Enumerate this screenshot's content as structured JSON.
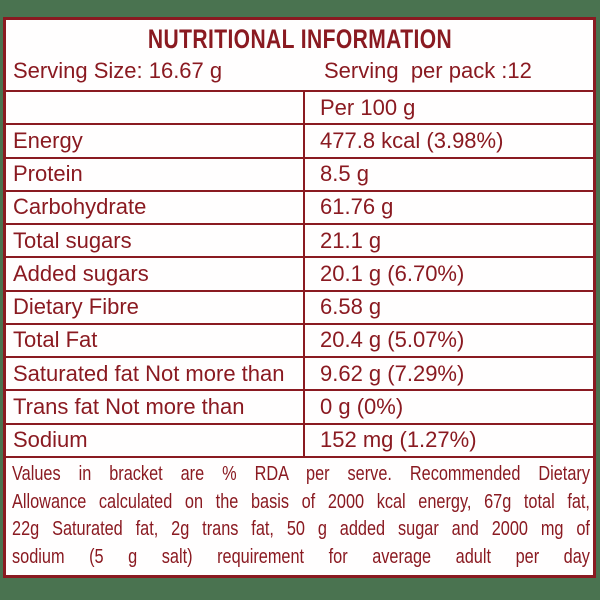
{
  "colors": {
    "package_green": "#4a7350",
    "label_maroon": "#8a1a21",
    "label_background": "#fffefe"
  },
  "header": {
    "title": "NUTRITIONAL INFORMATION",
    "serving_size": "Serving Size: 16.67 g",
    "serving_per_pack": "Serving  per pack :12"
  },
  "table": {
    "rows": [
      {
        "label": "",
        "value": "Per 100 g"
      },
      {
        "label": "Energy",
        "value": "477.8 kcal (3.98%)"
      },
      {
        "label": "Protein",
        "value": "8.5 g"
      },
      {
        "label": "Carbohydrate",
        "value": "61.76 g"
      },
      {
        "label": "Total sugars",
        "value": "21.1 g"
      },
      {
        "label": "Added sugars",
        "value": "20.1 g (6.70%)"
      },
      {
        "label": "Dietary Fibre",
        "value": "6.58 g"
      },
      {
        "label": "Total Fat",
        "value": "20.4 g (5.07%)"
      },
      {
        "label": "Saturated fat Not more than",
        "value": "9.62 g (7.29%)"
      },
      {
        "label": "Trans fat Not more than",
        "value": "0 g (0%)"
      },
      {
        "label": "Sodium",
        "value": "152 mg (1.27%)"
      }
    ]
  },
  "footer": {
    "lines": [
      "Values in bracket are % RDA per serve. Recommended Dietary",
      "Allowance calculated on the basis of 2000 kcal energy, 67g total fat,",
      "22g Saturated fat, 2g trans fat, 50 g added sugar and 2000 mg of",
      "sodium (5 g salt) requirement for average adult per day"
    ]
  }
}
